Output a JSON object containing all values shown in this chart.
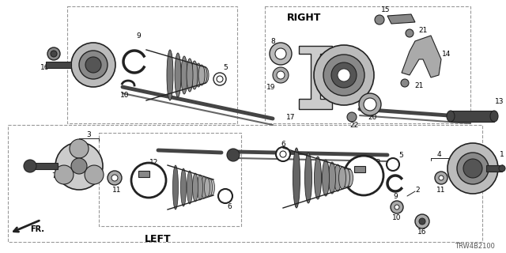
{
  "background_color": "#ffffff",
  "line_color": "#222222",
  "gray_dark": "#444444",
  "gray_mid": "#888888",
  "gray_light": "#cccccc",
  "part_number": "TRW4B2100",
  "right_label": "RIGHT",
  "left_label": "LEFT",
  "fr_label": "FR.",
  "fig_w": 6.4,
  "fig_h": 3.2,
  "dpi": 100
}
